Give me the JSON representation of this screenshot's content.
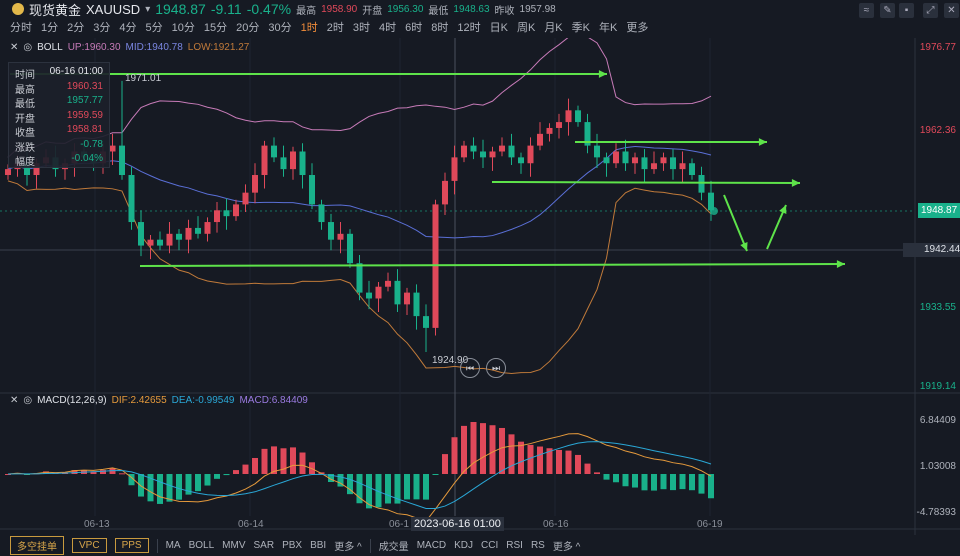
{
  "header": {
    "icon": "gold-coin-icon",
    "name": "现货黄金",
    "symbol": "XAUUSD",
    "price": "1948.87",
    "change": "-9.11",
    "change_pct": "-0.47%",
    "high_label": "最高",
    "high": "1958.90",
    "open_label": "开盘",
    "open": "1956.30",
    "low_label": "最低",
    "low": "1948.63",
    "prev_label": "昨收",
    "prev": "1957.98"
  },
  "periods": [
    "分时",
    "1分",
    "2分",
    "3分",
    "4分",
    "5分",
    "10分",
    "15分",
    "20分",
    "30分",
    "1时",
    "2时",
    "3时",
    "4时",
    "6时",
    "8时",
    "12时",
    "日K",
    "周K",
    "月K",
    "季K",
    "年K",
    "更多"
  ],
  "active_period": "1时",
  "boll": {
    "name": "BOLL",
    "up": "UP:1960.30",
    "mid": "MID:1940.78",
    "low": "LOW:1921.27"
  },
  "macd": {
    "name": "MACD(12,26,9)",
    "dif": "DIF:2.42655",
    "dea": "DEA:-0.99549",
    "macd": "MACD:6.84409"
  },
  "tooltip": [
    [
      "时间",
      "06-16 01:00"
    ],
    [
      "最高",
      "1960.31"
    ],
    [
      "最低",
      "1957.77"
    ],
    [
      "开盘",
      "1959.59"
    ],
    [
      "收盘",
      "1958.81"
    ],
    [
      "涨跌",
      "-0.78"
    ],
    [
      "幅度",
      "-0.04%"
    ]
  ],
  "price_axis": [
    "1976.77",
    "1962.36",
    "1948.87",
    "1933.55",
    "1919.14"
  ],
  "crosshair_price": "1942.44",
  "current_price": "1948.87",
  "macd_axis": [
    "6.84409",
    "1.03008",
    "-4.78393"
  ],
  "annotations": {
    "high_mark": "1971.01",
    "low_mark": "1924.90"
  },
  "dates": [
    "06-13",
    "06-14",
    "06-1",
    "06-16",
    "06-19"
  ],
  "crosshair_date": "2023-06-16 01:00",
  "bottom": {
    "orders": [
      "多空挂单",
      "VPC",
      "PPS"
    ],
    "main_ind": [
      "MA",
      "BOLL",
      "MMV",
      "SAR",
      "PBX",
      "BBI",
      "更多 ^"
    ],
    "sub_ind": [
      "成交量",
      "MACD",
      "KDJ",
      "CCI",
      "RSI",
      "RS",
      "更多 ^"
    ]
  },
  "colors": {
    "up": "#e0495a",
    "down": "#19b18b",
    "boll_up": "#c77bb8",
    "boll_mid": "#5a6fd6",
    "boll_low": "#c07a3a",
    "arrow": "#5ee34a",
    "dif": "#e59a3c",
    "dea": "#2aa7d6"
  },
  "chart_data": {
    "type": "candlestick",
    "closes": [
      1956,
      1957,
      1955,
      1957,
      1958,
      1956,
      1957,
      1959,
      1958,
      1957,
      1959,
      1960,
      1955,
      1947,
      1943,
      1944,
      1943,
      1945,
      1944,
      1946,
      1945,
      1947,
      1949,
      1948,
      1950,
      1952,
      1955,
      1960,
      1958,
      1956,
      1959,
      1955,
      1950,
      1947,
      1944,
      1945,
      1940,
      1935,
      1934,
      1936,
      1937,
      1933,
      1935,
      1931,
      1929,
      1950,
      1954,
      1958,
      1960,
      1959,
      1958,
      1959,
      1960,
      1958,
      1957,
      1960,
      1962,
      1963,
      1964,
      1966,
      1964,
      1960,
      1958,
      1957,
      1959,
      1957,
      1958,
      1956,
      1957,
      1958,
      1956,
      1957,
      1955,
      1952,
      1949
    ]
  }
}
